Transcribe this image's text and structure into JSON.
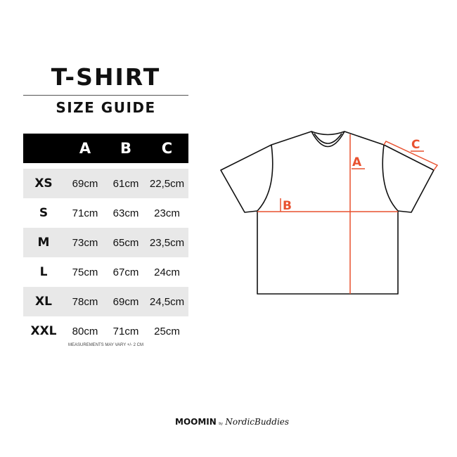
{
  "title": "T-SHIRT",
  "subtitle": "SIZE GUIDE",
  "table": {
    "headers": [
      "",
      "A",
      "B",
      "C"
    ],
    "rows": [
      [
        "XS",
        "69cm",
        "61cm",
        "22,5cm"
      ],
      [
        "S",
        "71cm",
        "63cm",
        "23cm"
      ],
      [
        "M",
        "73cm",
        "65cm",
        "23,5cm"
      ],
      [
        "L",
        "75cm",
        "67cm",
        "24cm"
      ],
      [
        "XL",
        "78cm",
        "69cm",
        "24,5cm"
      ],
      [
        "XXL",
        "80cm",
        "71cm",
        "25cm"
      ]
    ]
  },
  "note": "MEASUREMENTS MAY VARY +/- 2 CM",
  "diagram": {
    "labels": {
      "a": "A",
      "b": "B",
      "c": "C"
    },
    "accent_color": "#e8512f"
  },
  "logo": {
    "brand": "MOOMIN",
    "by": "by",
    "partner": "NordicBuddies"
  }
}
